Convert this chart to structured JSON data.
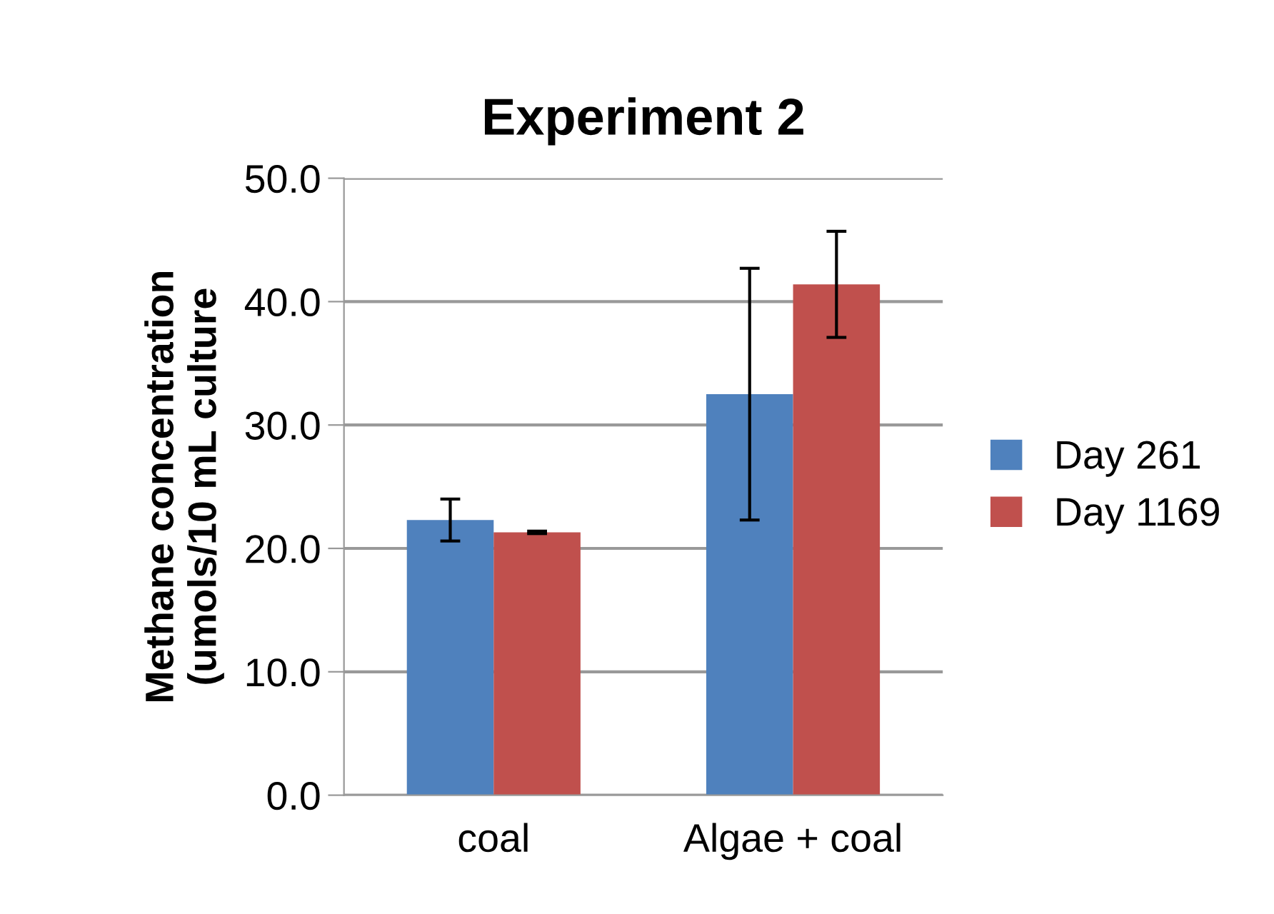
{
  "chart_data": {
    "type": "bar",
    "title": "Experiment 2",
    "ylabel": "Methane concentration\n(umols/10 mL culture",
    "categories": [
      "coal",
      "Algae + coal"
    ],
    "series": [
      {
        "name": "Day 261",
        "color": "#4f81bd",
        "values": [
          22.3,
          32.5
        ],
        "errors": [
          1.7,
          10.2
        ]
      },
      {
        "name": "Day 1169",
        "color": "#c0504d",
        "values": [
          21.3,
          41.4
        ],
        "errors": [
          0.1,
          4.3
        ]
      }
    ],
    "ylim": [
      0,
      50
    ],
    "yticks": [
      {
        "value": 0,
        "label": "0.0"
      },
      {
        "value": 10,
        "label": "10.0"
      },
      {
        "value": 20,
        "label": "20.0"
      },
      {
        "value": 30,
        "label": "30.0"
      },
      {
        "value": 40,
        "label": "40.0"
      },
      {
        "value": 50,
        "label": "50.0"
      }
    ],
    "grid": "y",
    "legend": "right"
  }
}
